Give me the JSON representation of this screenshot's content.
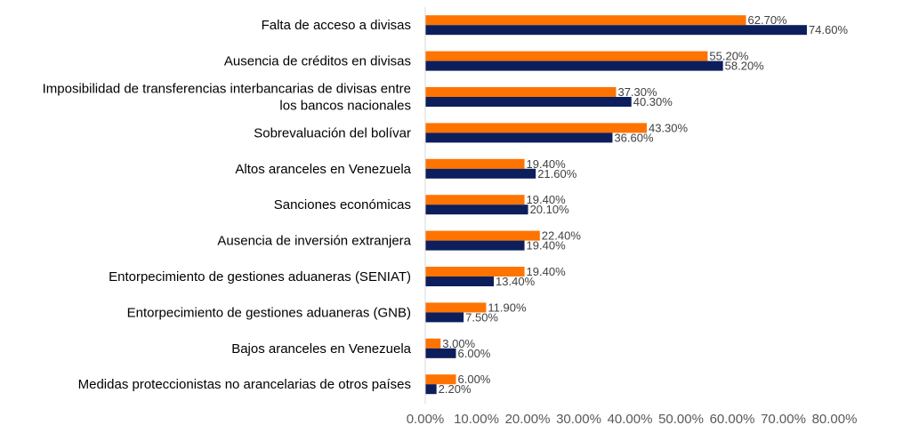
{
  "chart_data": {
    "type": "bar",
    "orientation": "horizontal",
    "categories": [
      "Falta de acceso a divisas",
      "Ausencia de créditos en divisas",
      "Imposibilidad de transferencias interbancarias de divisas entre los bancos nacionales",
      "Sobrevaluación del bolívar",
      "Altos aranceles en Venezuela",
      "Sanciones económicas",
      "Ausencia de inversión extranjera",
      "Entorpecimiento de gestiones aduaneras (SENIAT)",
      "Entorpecimiento de gestiones aduaneras (GNB)",
      "Bajos aranceles en Venezuela",
      "Medidas proteccionistas no arancelarias de otros países"
    ],
    "category_lines": [
      [
        "Falta de acceso a divisas"
      ],
      [
        "Ausencia de créditos en divisas"
      ],
      [
        "Imposibilidad de transferencias interbancarias de divisas entre",
        "los bancos nacionales"
      ],
      [
        "Sobrevaluación del bolívar"
      ],
      [
        "Altos aranceles en Venezuela"
      ],
      [
        "Sanciones económicas"
      ],
      [
        "Ausencia de inversión extranjera"
      ],
      [
        "Entorpecimiento de gestiones aduaneras (SENIAT)"
      ],
      [
        "Entorpecimiento de gestiones aduaneras (GNB)"
      ],
      [
        "Bajos aranceles en Venezuela"
      ],
      [
        "Medidas proteccionistas no arancelarias de otros países"
      ]
    ],
    "series": [
      {
        "color": "#FF7300",
        "values": [
          62.7,
          55.2,
          37.3,
          43.3,
          19.4,
          19.4,
          22.4,
          19.4,
          11.9,
          3.0,
          6.0
        ],
        "labels": [
          "62.70%",
          "55.20%",
          "37.30%",
          "43.30%",
          "19.40%",
          "19.40%",
          "22.40%",
          "19.40%",
          "11.90%",
          "3.00%",
          "6.00%"
        ]
      },
      {
        "color": "#0D1E5C",
        "values": [
          74.6,
          58.2,
          40.3,
          36.6,
          21.6,
          20.1,
          19.4,
          13.4,
          7.5,
          6.0,
          2.2
        ],
        "labels": [
          "74.60%",
          "58.20%",
          "40.30%",
          "36.60%",
          "21.60%",
          "20.10%",
          "19.40%",
          "13.40%",
          "7.50%",
          "6.00%",
          "2.20%"
        ]
      }
    ],
    "xlim": [
      0,
      80
    ],
    "xticks": [
      0,
      10,
      20,
      30,
      40,
      50,
      60,
      70,
      80
    ],
    "xtick_labels": [
      "0.00%",
      "10.00%",
      "20.00%",
      "30.00%",
      "40.00%",
      "50.00%",
      "60.00%",
      "70.00%",
      "80.00%"
    ],
    "title": "",
    "xlabel": "",
    "ylabel": "",
    "legend": "none",
    "grid": false
  }
}
